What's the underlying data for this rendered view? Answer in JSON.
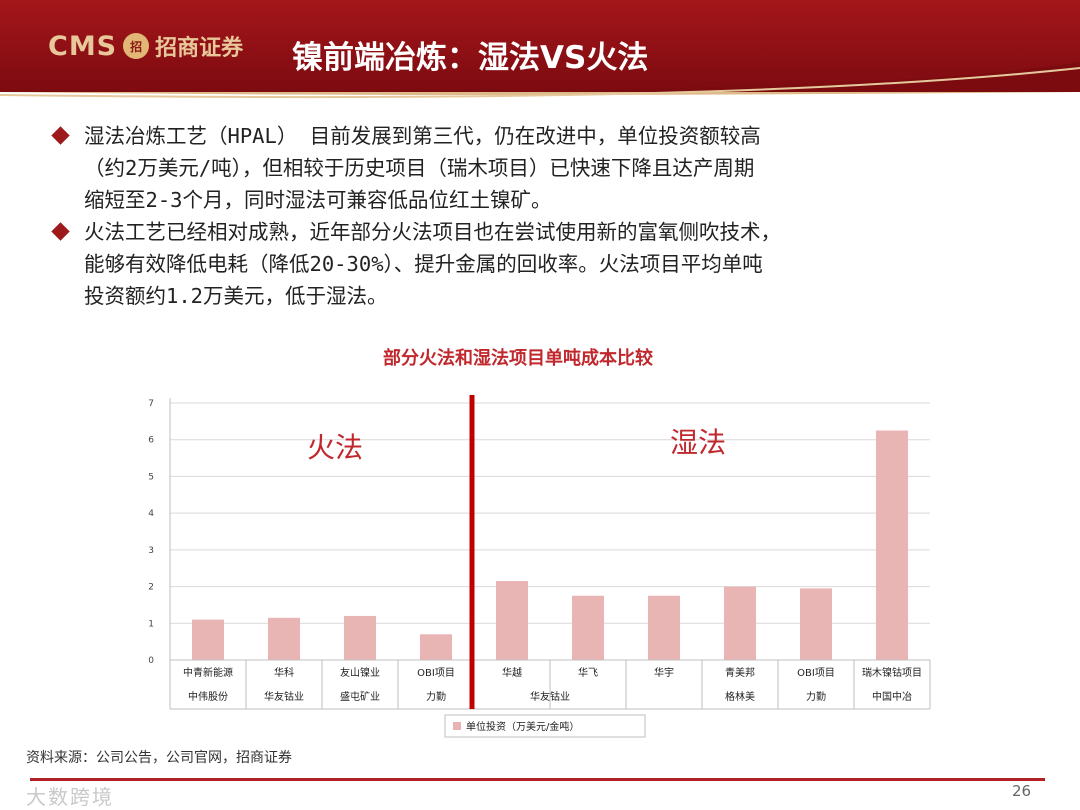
{
  "header": {
    "logo_cms": "CMS",
    "logo_badge": "招",
    "logo_cn": "招商证券",
    "title": "镍前端冶炼：湿法VS火法"
  },
  "bullets": [
    {
      "lines": [
        "湿法冶炼工艺（HPAL） 目前发展到第三代，仍在改进中，单位投资额较高",
        "（约2万美元/吨），但相较于历史项目（瑞木项目）已快速下降且达产周期",
        "缩短至2-3个月，同时湿法可兼容低品位红土镍矿。"
      ]
    },
    {
      "lines": [
        "火法工艺已经相对成熟，近年部分火法项目也在尝试使用新的富氧侧吹技术，",
        "能够有效降低电耗（降低20-30%）、提升金属的回收率。火法项目平均单吨",
        "投资额约1.2万美元，低于湿法。"
      ]
    }
  ],
  "chart_data": {
    "type": "bar",
    "title": "部分火法和湿法项目单吨成本比较",
    "categories": [
      [
        "中青新能源",
        "中伟股份"
      ],
      [
        "华科",
        "华友钴业"
      ],
      [
        "友山镍业",
        "盛屯矿业"
      ],
      [
        "OBI项目",
        "力勤"
      ],
      [
        "华越",
        ""
      ],
      [
        "华飞",
        "华友钴业"
      ],
      [
        "华宇",
        ""
      ],
      [
        "青美邦",
        "格林美"
      ],
      [
        "OBI项目",
        "力勤"
      ],
      [
        "瑞木镍钴项目",
        "中国中冶"
      ]
    ],
    "series": [
      {
        "name": "单位投资（万美元/金吨）",
        "values": [
          1.1,
          1.15,
          1.2,
          0.7,
          2.15,
          1.75,
          1.75,
          2.0,
          1.95,
          6.25
        ]
      }
    ],
    "ylim": [
      0,
      7
    ],
    "yticks": [
      "0",
      "1",
      "2",
      "3",
      "4",
      "5",
      "6",
      "7"
    ],
    "annotations": [
      "火法",
      "湿法"
    ],
    "grid": true,
    "legend": "bottom",
    "colors": {
      "bar": "#e8b4b4",
      "divider": "#c00000",
      "annotation": "#c0282d",
      "title": "#c0282d"
    }
  },
  "footer": {
    "source": "资料来源：公司公告，公司官网，招商证券",
    "page": "26",
    "watermark": "大数跨境"
  }
}
